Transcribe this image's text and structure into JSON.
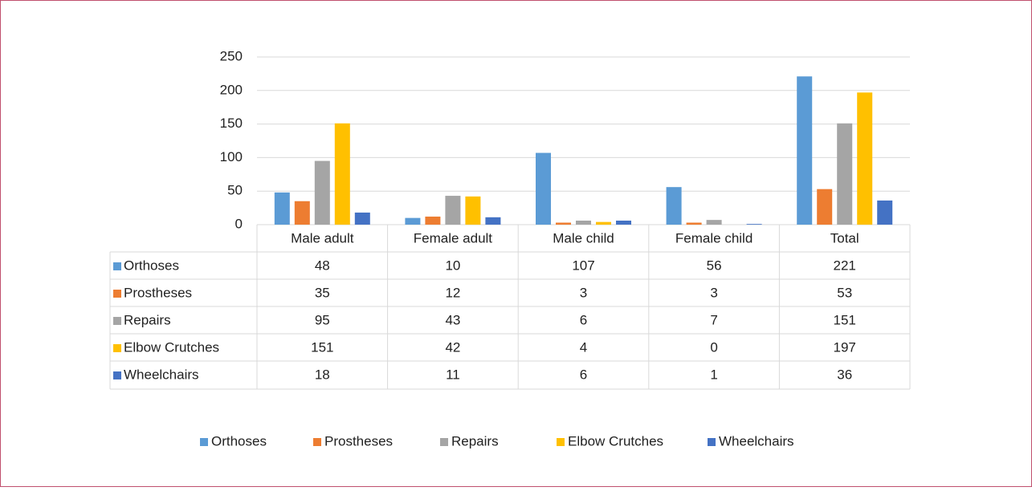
{
  "chart_data": {
    "type": "bar",
    "categories": [
      "Male adult",
      "Female adult",
      "Male child",
      "Female child",
      "Total"
    ],
    "series": [
      {
        "name": "Orthoses",
        "color": "#5b9bd5",
        "values": [
          48,
          10,
          107,
          56,
          221
        ]
      },
      {
        "name": "Prostheses",
        "color": "#ed7d31",
        "values": [
          35,
          12,
          3,
          3,
          53
        ]
      },
      {
        "name": "Repairs",
        "color": "#a5a5a5",
        "values": [
          95,
          43,
          6,
          7,
          151
        ]
      },
      {
        "name": "Elbow Crutches",
        "color": "#ffc000",
        "values": [
          151,
          42,
          4,
          0,
          197
        ]
      },
      {
        "name": "Wheelchairs",
        "color": "#4472c4",
        "values": [
          18,
          11,
          6,
          1,
          36
        ]
      }
    ],
    "ylim": [
      0,
      250
    ],
    "yticks": [
      0,
      50,
      100,
      150,
      200,
      250
    ],
    "grid": true,
    "legend": "bottom"
  }
}
